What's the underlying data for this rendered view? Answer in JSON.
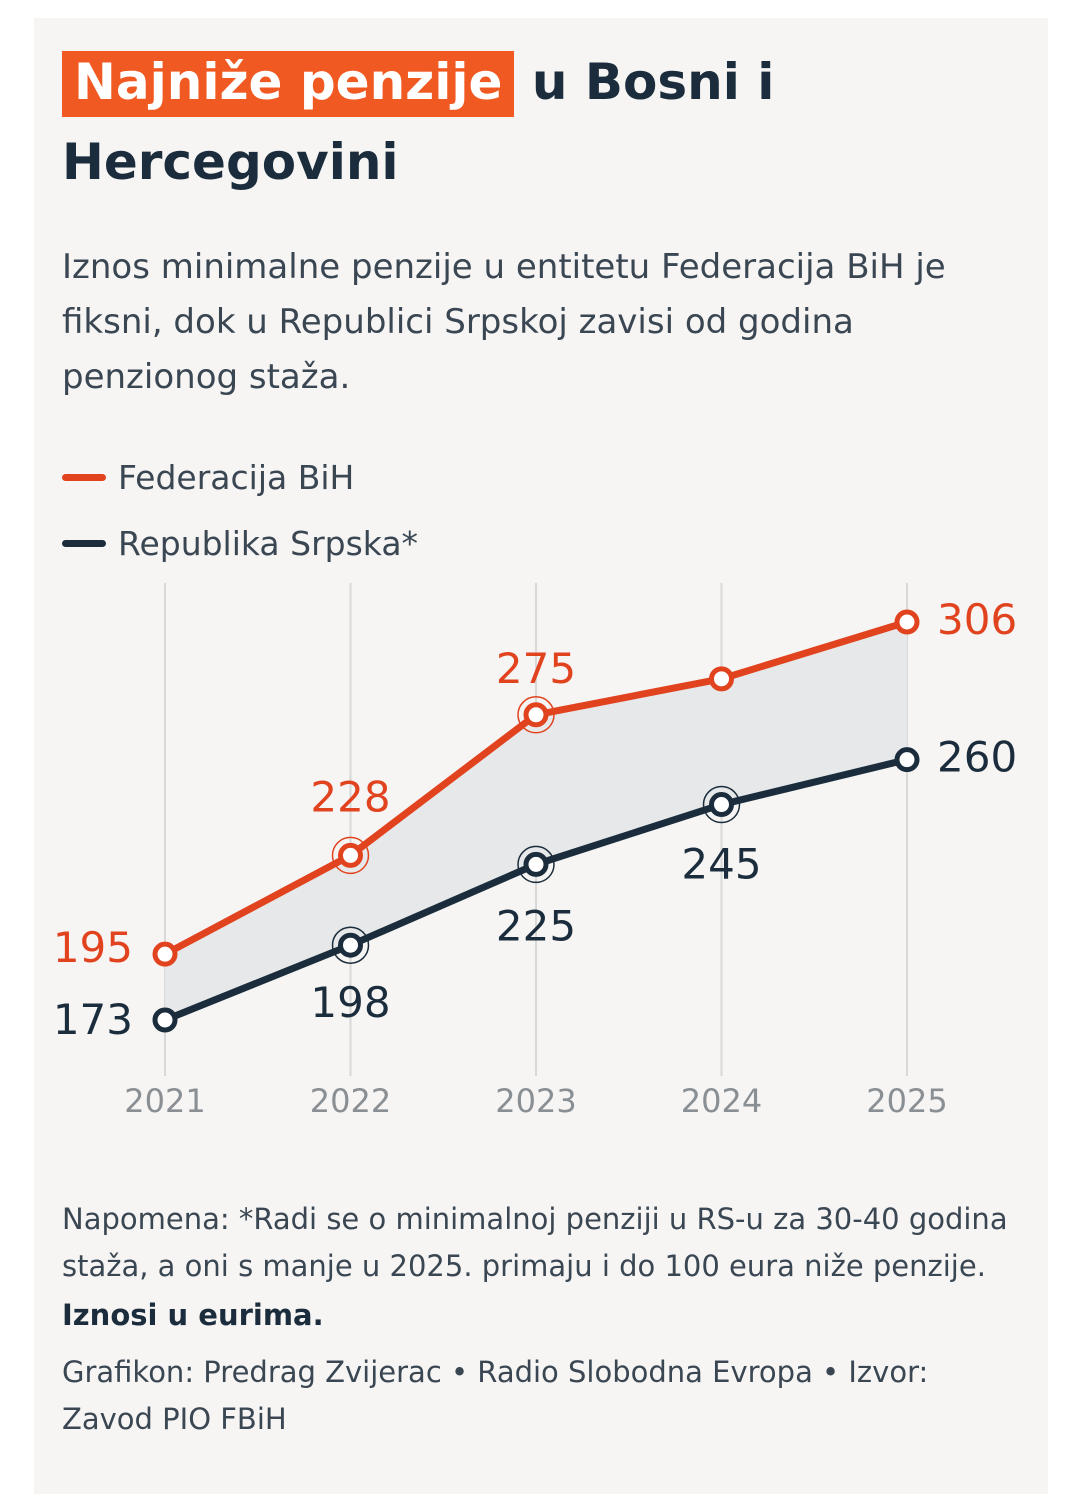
{
  "title": {
    "highlight": "Najniže penzije",
    "rest": " u Bosni i Hercegovini"
  },
  "subtitle": "Iznos minimalne penzije u entitetu Federacija BiH je fiksni, dok u Republici Srpskoj zavisi od godina penzionog staža.",
  "legend": {
    "items": [
      {
        "label": "Federacija BiH",
        "color": "#e2431f"
      },
      {
        "label": "Republika Srpska*",
        "color": "#1b2d3c"
      }
    ]
  },
  "colors": {
    "accent": "#f05a22",
    "fbih": "#e2431f",
    "rs": "#1b2d3c",
    "band": "#e6e8e9",
    "grid": "#d8d8d8",
    "axis_text": "#8a8f94"
  },
  "chart_data": {
    "type": "line",
    "categories": [
      "2021",
      "2022",
      "2023",
      "2024",
      "2025"
    ],
    "series": [
      {
        "name": "Federacija BiH",
        "values": [
          195,
          228,
          275,
          287,
          306
        ],
        "labels": [
          "195",
          "228",
          "275",
          "",
          "306"
        ]
      },
      {
        "name": "Republika Srpska*",
        "values": [
          173,
          198,
          225,
          245,
          260
        ],
        "labels": [
          "173",
          "198",
          "225",
          "245",
          "260"
        ]
      }
    ],
    "ylim": [
      150,
      330
    ],
    "grid": true,
    "legend": "top-left",
    "unit": "EUR"
  },
  "notes": {
    "note": "Napomena: *Radi se o minimalnoj penziji u RS-u za 30-40 godina staža, a oni s manje u 2025. primaju i do 100 eura niže penzije.",
    "units": "Iznosi u eurima.",
    "credit": "Grafikon: Predrag Zvijerac • Radio Slobodna Evropa • Izvor: Zavod PIO FBiH"
  }
}
